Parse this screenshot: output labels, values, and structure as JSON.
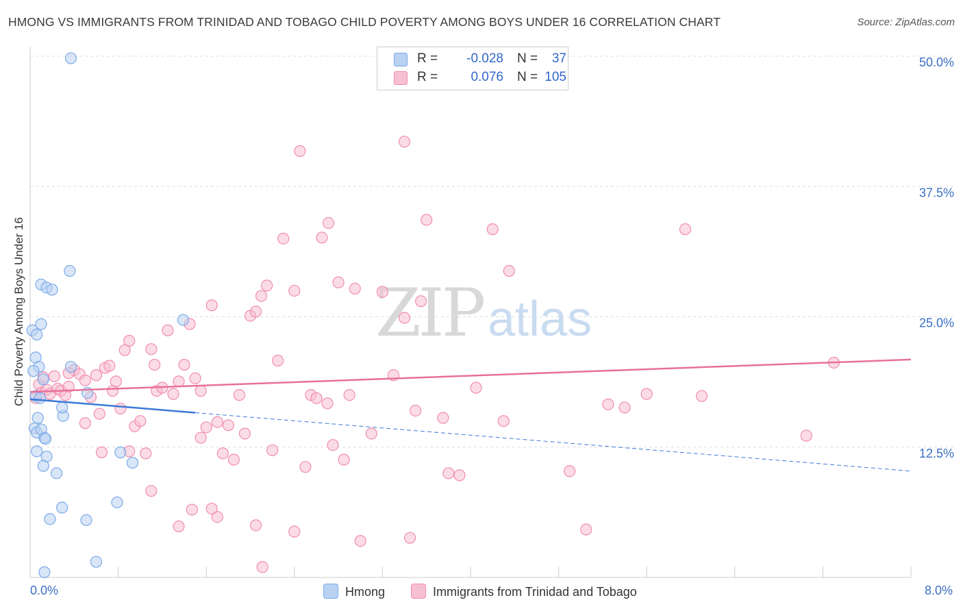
{
  "title": "HMONG VS IMMIGRANTS FROM TRINIDAD AND TOBAGO CHILD POVERTY AMONG BOYS UNDER 16 CORRELATION CHART",
  "source": "Source: ZipAtlas.com",
  "watermark": {
    "zip": "ZIP",
    "atlas": "atlas"
  },
  "legend_top": {
    "rows": [
      {
        "r_label": "R =",
        "r_value": "-0.028",
        "n_label": "N =",
        "n_value": "37"
      },
      {
        "r_label": "R =",
        "r_value": "0.076",
        "n_label": "N =",
        "n_value": "105"
      }
    ]
  },
  "legend_bottom": {
    "series1": "Hmong",
    "series2": "Immigrants from Trinidad and Tobago"
  },
  "colors": {
    "hmong": "#7aaae8",
    "hmong_fill": "#b9d2f3",
    "trinidad": "#f08caf",
    "trinidad_fill": "#f7bfd2",
    "hmong_line": "#3a78d8",
    "trinidad_line": "#e8709a",
    "axis_text": "#3a6fc4",
    "grid": "#dddddd"
  },
  "chart_data": {
    "type": "scatter",
    "xlabel": "",
    "ylabel": "Child Poverty Among Boys Under 16",
    "xlim": [
      0,
      8
    ],
    "ylim": [
      0,
      50
    ],
    "x_tick_labels": [
      "0.0%",
      "8.0%"
    ],
    "y_ticks": [
      12.5,
      25.0,
      37.5,
      50.0
    ],
    "y_tick_labels": [
      "12.5%",
      "25.0%",
      "37.5%",
      "50.0%"
    ],
    "grid": true,
    "series": [
      {
        "name": "Hmong",
        "points": [
          [
            0.02,
            23.7
          ],
          [
            0.06,
            23.3
          ],
          [
            0.1,
            24.3
          ],
          [
            0.05,
            21.1
          ],
          [
            0.08,
            20.2
          ],
          [
            0.12,
            19.0
          ],
          [
            0.03,
            19.8
          ],
          [
            0.05,
            17.4
          ],
          [
            0.09,
            17.2
          ],
          [
            0.07,
            15.3
          ],
          [
            0.04,
            14.3
          ],
          [
            0.06,
            13.9
          ],
          [
            0.1,
            14.2
          ],
          [
            0.13,
            13.4
          ],
          [
            0.14,
            13.3
          ],
          [
            0.06,
            12.1
          ],
          [
            0.15,
            11.6
          ],
          [
            0.12,
            10.7
          ],
          [
            0.24,
            10.0
          ],
          [
            0.1,
            28.1
          ],
          [
            0.15,
            27.8
          ],
          [
            0.2,
            27.6
          ],
          [
            0.36,
            29.4
          ],
          [
            0.37,
            49.8
          ],
          [
            0.37,
            20.2
          ],
          [
            0.3,
            15.5
          ],
          [
            0.29,
            16.3
          ],
          [
            0.52,
            17.7
          ],
          [
            0.29,
            6.7
          ],
          [
            0.18,
            5.6
          ],
          [
            0.51,
            5.5
          ],
          [
            0.79,
            7.2
          ],
          [
            0.82,
            12.0
          ],
          [
            0.93,
            11.0
          ],
          [
            1.39,
            24.7
          ],
          [
            0.6,
            1.5
          ],
          [
            0.13,
            0.5
          ]
        ]
      },
      {
        "name": "Immigrants from Trinidad and Tobago",
        "points": [
          [
            0.05,
            17.2
          ],
          [
            0.08,
            18.5
          ],
          [
            0.12,
            19.2
          ],
          [
            0.1,
            17.7
          ],
          [
            0.15,
            18.0
          ],
          [
            0.18,
            17.6
          ],
          [
            0.22,
            19.3
          ],
          [
            0.25,
            18.1
          ],
          [
            0.28,
            17.9
          ],
          [
            0.32,
            17.5
          ],
          [
            0.35,
            18.3
          ],
          [
            0.4,
            19.9
          ],
          [
            0.45,
            19.5
          ],
          [
            0.5,
            18.9
          ],
          [
            0.55,
            17.3
          ],
          [
            0.6,
            19.4
          ],
          [
            0.63,
            15.7
          ],
          [
            0.68,
            20.1
          ],
          [
            0.72,
            20.3
          ],
          [
            0.75,
            17.9
          ],
          [
            0.78,
            18.8
          ],
          [
            0.82,
            16.2
          ],
          [
            0.86,
            21.8
          ],
          [
            0.9,
            22.7
          ],
          [
            0.95,
            14.5
          ],
          [
            1.0,
            15.0
          ],
          [
            1.05,
            11.9
          ],
          [
            1.1,
            21.9
          ],
          [
            1.13,
            20.4
          ],
          [
            1.15,
            17.9
          ],
          [
            1.2,
            18.2
          ],
          [
            1.25,
            23.7
          ],
          [
            1.3,
            17.6
          ],
          [
            1.35,
            18.8
          ],
          [
            1.4,
            20.4
          ],
          [
            1.45,
            24.3
          ],
          [
            1.5,
            19.1
          ],
          [
            1.55,
            17.9
          ],
          [
            1.6,
            14.4
          ],
          [
            1.65,
            26.1
          ],
          [
            1.7,
            14.9
          ],
          [
            1.75,
            11.9
          ],
          [
            1.8,
            14.6
          ],
          [
            1.85,
            11.3
          ],
          [
            1.9,
            17.5
          ],
          [
            1.95,
            13.8
          ],
          [
            2.0,
            25.1
          ],
          [
            2.05,
            25.5
          ],
          [
            2.1,
            27.0
          ],
          [
            2.15,
            28.0
          ],
          [
            2.2,
            12.2
          ],
          [
            2.25,
            20.8
          ],
          [
            2.3,
            32.5
          ],
          [
            2.4,
            27.5
          ],
          [
            2.45,
            40.9
          ],
          [
            2.5,
            10.6
          ],
          [
            2.55,
            17.5
          ],
          [
            2.6,
            17.2
          ],
          [
            2.65,
            32.6
          ],
          [
            2.7,
            16.7
          ],
          [
            2.75,
            12.7
          ],
          [
            2.8,
            28.3
          ],
          [
            2.85,
            11.3
          ],
          [
            2.9,
            17.5
          ],
          [
            2.95,
            27.7
          ],
          [
            3.1,
            13.8
          ],
          [
            3.2,
            27.4
          ],
          [
            3.3,
            19.4
          ],
          [
            3.4,
            24.9
          ],
          [
            3.5,
            16.0
          ],
          [
            3.55,
            26.5
          ],
          [
            3.6,
            34.3
          ],
          [
            3.75,
            15.3
          ],
          [
            3.8,
            10.0
          ],
          [
            3.9,
            9.8
          ],
          [
            4.05,
            18.2
          ],
          [
            4.2,
            33.4
          ],
          [
            4.3,
            15.0
          ],
          [
            4.35,
            29.4
          ],
          [
            4.9,
            10.2
          ],
          [
            5.05,
            4.6
          ],
          [
            5.25,
            16.6
          ],
          [
            5.4,
            16.3
          ],
          [
            5.6,
            17.6
          ],
          [
            5.95,
            33.4
          ],
          [
            6.1,
            17.4
          ],
          [
            7.05,
            13.6
          ],
          [
            7.3,
            20.6
          ],
          [
            3.45,
            3.8
          ],
          [
            3.0,
            3.5
          ],
          [
            2.4,
            4.4
          ],
          [
            1.7,
            5.8
          ],
          [
            1.47,
            6.5
          ],
          [
            1.35,
            4.9
          ],
          [
            1.1,
            8.3
          ],
          [
            0.65,
            12.0
          ],
          [
            0.9,
            12.1
          ],
          [
            1.55,
            13.4
          ],
          [
            2.05,
            5.0
          ],
          [
            2.11,
            1.0
          ],
          [
            2.71,
            34.0
          ],
          [
            1.65,
            6.6
          ],
          [
            3.4,
            41.8
          ],
          [
            0.5,
            14.8
          ],
          [
            0.35,
            19.6
          ]
        ]
      }
    ],
    "trendlines": [
      {
        "series": "Hmong",
        "solid": {
          "x": [
            0.0,
            1.5
          ],
          "y": [
            17.1,
            15.8
          ]
        },
        "dashed": {
          "x": [
            1.5,
            8.0
          ],
          "y": [
            15.8,
            10.2
          ]
        }
      },
      {
        "series": "Immigrants from Trinidad and Tobago",
        "solid": {
          "x": [
            0.0,
            8.0
          ],
          "y": [
            17.8,
            20.9
          ]
        }
      }
    ]
  }
}
